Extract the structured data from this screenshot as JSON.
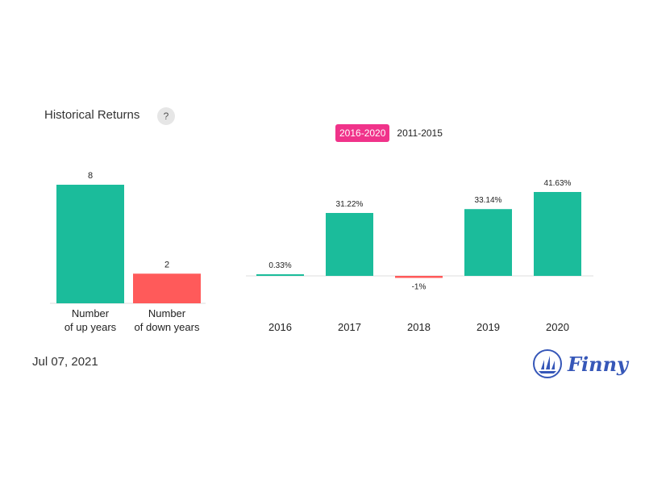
{
  "header": {
    "title": "Historical Returns",
    "help_label": "?"
  },
  "tabs": [
    {
      "label": "2016-2020",
      "active": true
    },
    {
      "label": "2011-2015",
      "active": false
    }
  ],
  "footer": {
    "date": "Jul 07, 2021",
    "brand": "Finny"
  },
  "colors": {
    "positive": "#1bbc9b",
    "negative": "#ff5a5a",
    "accent": "#f0338a",
    "brand": "#3657b8"
  },
  "chart_data": [
    {
      "type": "bar",
      "categories": [
        [
          "Number",
          "of up years"
        ],
        [
          "Number",
          "of down years"
        ]
      ],
      "values": [
        8,
        2
      ],
      "data_labels": [
        "8",
        "2"
      ],
      "title": "",
      "xlabel": "",
      "ylabel": ""
    },
    {
      "type": "bar",
      "categories": [
        "2016",
        "2017",
        "2018",
        "2019",
        "2020"
      ],
      "values": [
        0.33,
        31.22,
        -1,
        33.14,
        41.63
      ],
      "data_labels": [
        "0.33%",
        "31.22%",
        "-1%",
        "33.14%",
        "41.63%"
      ],
      "title": "",
      "xlabel": "",
      "ylabel": ""
    }
  ]
}
